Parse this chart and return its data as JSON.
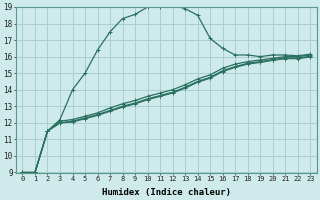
{
  "xlabel": "Humidex (Indice chaleur)",
  "bg_color": "#ceeaea",
  "grid_color": "#aacece",
  "line_color": "#2a7060",
  "xlim": [
    -0.5,
    23.5
  ],
  "ylim": [
    9,
    19
  ],
  "x_ticks": [
    0,
    1,
    2,
    3,
    4,
    5,
    6,
    7,
    8,
    9,
    10,
    11,
    12,
    13,
    14,
    15,
    16,
    17,
    18,
    19,
    20,
    21,
    22,
    23
  ],
  "y_ticks": [
    9,
    10,
    11,
    12,
    13,
    14,
    15,
    16,
    17,
    18,
    19
  ],
  "main_curve_x": [
    0,
    1,
    2,
    3,
    4,
    5,
    6,
    7,
    8,
    9,
    10,
    11,
    12,
    13,
    14,
    15,
    16,
    17,
    18,
    19,
    20,
    21,
    22,
    23
  ],
  "main_curve_y": [
    9.0,
    9.0,
    11.5,
    12.2,
    14.0,
    15.0,
    16.4,
    17.5,
    18.3,
    18.55,
    19.0,
    19.0,
    19.1,
    18.9,
    18.5,
    17.1,
    16.5,
    16.1,
    16.1,
    16.0,
    16.1,
    16.1,
    16.05,
    16.15
  ],
  "line2_x": [
    0,
    1,
    2,
    3,
    4,
    5,
    6,
    7,
    8,
    9,
    10,
    11,
    12,
    13,
    14,
    15,
    16,
    17,
    18,
    19,
    20,
    21,
    22,
    23
  ],
  "line2_y": [
    9.0,
    9.0,
    11.5,
    12.1,
    12.2,
    12.4,
    12.6,
    12.9,
    13.15,
    13.35,
    13.6,
    13.8,
    14.0,
    14.3,
    14.65,
    14.9,
    15.3,
    15.55,
    15.7,
    15.8,
    15.9,
    16.0,
    16.0,
    16.1
  ],
  "line3_x": [
    0,
    1,
    2,
    3,
    4,
    5,
    6,
    7,
    8,
    9,
    10,
    11,
    12,
    13,
    14,
    15,
    16,
    17,
    18,
    19,
    20,
    21,
    22,
    23
  ],
  "line3_y": [
    9.0,
    9.0,
    11.5,
    12.0,
    12.1,
    12.3,
    12.5,
    12.75,
    13.0,
    13.2,
    13.45,
    13.65,
    13.85,
    14.15,
    14.5,
    14.75,
    15.15,
    15.4,
    15.6,
    15.7,
    15.82,
    15.92,
    15.92,
    16.02
  ],
  "line4_x": [
    0,
    1,
    2,
    3,
    4,
    5,
    6,
    7,
    8,
    9,
    10,
    11,
    12,
    13,
    14,
    15,
    16,
    17,
    18,
    19,
    20,
    21,
    22,
    23
  ],
  "line4_y": [
    9.0,
    9.0,
    11.5,
    12.0,
    12.05,
    12.25,
    12.45,
    12.7,
    12.95,
    13.15,
    13.4,
    13.6,
    13.8,
    14.1,
    14.45,
    14.7,
    15.1,
    15.35,
    15.55,
    15.65,
    15.78,
    15.88,
    15.88,
    15.98
  ]
}
